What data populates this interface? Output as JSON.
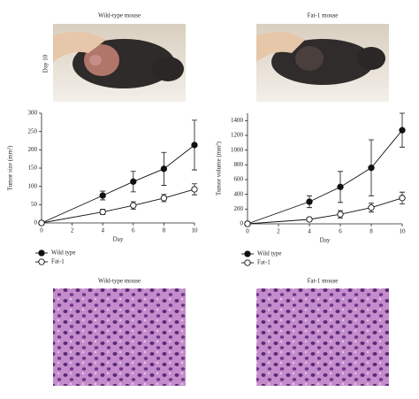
{
  "photos": {
    "titles": [
      "Wild-type mouse",
      "Fat-1 mouse"
    ],
    "day_label": "Day 10"
  },
  "histology": {
    "titles": [
      "Wild-type mouse",
      "Fat-1 mouse"
    ]
  },
  "chart_data": [
    {
      "type": "line",
      "x_label": "Day",
      "y_label": "Tumor size (mm²)",
      "x": [
        0,
        4,
        6,
        8,
        10
      ],
      "xlim": [
        0,
        10
      ],
      "xticks": [
        0,
        2,
        4,
        6,
        8,
        10
      ],
      "ylim": [
        0,
        300
      ],
      "yticks": [
        0,
        50,
        100,
        150,
        200,
        250,
        300
      ],
      "series": [
        {
          "name": "Wild type",
          "color": "#111111",
          "marker_fill": "#111111",
          "values": [
            0,
            75,
            113,
            148,
            213
          ],
          "errors": [
            0,
            12,
            28,
            45,
            68
          ]
        },
        {
          "name": "Fat-1",
          "color": "#111111",
          "marker_fill": "#ffffff",
          "values": [
            0,
            30,
            48,
            68,
            92
          ],
          "errors": [
            0,
            7,
            10,
            10,
            15
          ]
        }
      ]
    },
    {
      "type": "line",
      "x_label": "Day",
      "y_label": "Tumor volume (mm³)",
      "x": [
        0,
        4,
        6,
        8,
        10
      ],
      "xlim": [
        0,
        10
      ],
      "xticks": [
        0,
        2,
        4,
        6,
        8,
        10
      ],
      "ylim": [
        0,
        1500
      ],
      "yticks": [
        0,
        200,
        400,
        600,
        800,
        1000,
        1200,
        1400
      ],
      "series": [
        {
          "name": "Wild type",
          "color": "#111111",
          "marker_fill": "#111111",
          "values": [
            0,
            300,
            500,
            760,
            1270
          ],
          "errors": [
            0,
            80,
            210,
            380,
            230
          ]
        },
        {
          "name": "Fat-1",
          "color": "#111111",
          "marker_fill": "#ffffff",
          "values": [
            0,
            60,
            130,
            220,
            350
          ],
          "errors": [
            0,
            20,
            50,
            60,
            80
          ]
        }
      ]
    }
  ]
}
